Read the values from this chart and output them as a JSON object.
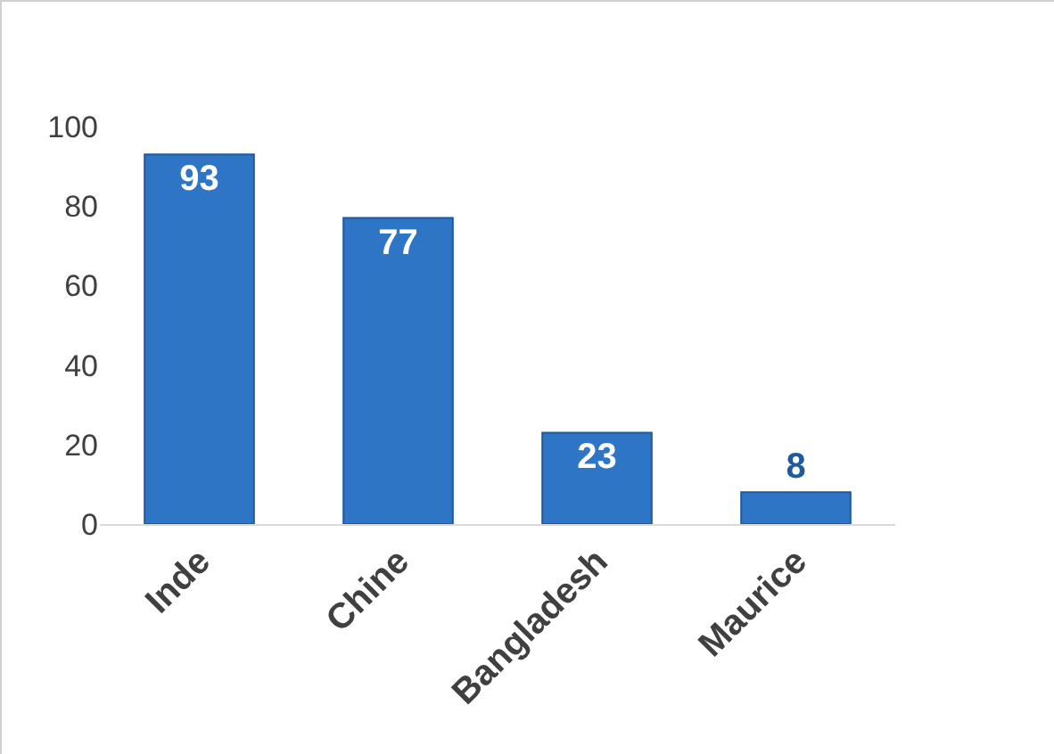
{
  "chart_data": {
    "type": "bar",
    "categories": [
      "Inde",
      "Chine",
      "Bangladesh",
      "Maurice"
    ],
    "values": [
      93,
      77,
      23,
      8
    ],
    "color": "#2e75c6",
    "ylim": [
      0,
      100
    ],
    "yticks": [
      0,
      20,
      40,
      60,
      80,
      100
    ],
    "grid": false,
    "data_labels": true
  }
}
